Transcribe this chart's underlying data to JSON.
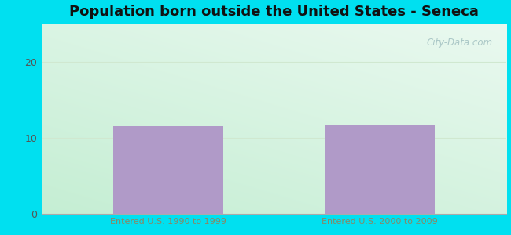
{
  "title": "Population born outside the United States - Seneca",
  "categories": [
    "Entered U.S. 1990 to 1999",
    "Entered U.S. 2000 to 2009"
  ],
  "values": [
    11.5,
    11.8
  ],
  "bar_color": "#b09ac8",
  "background_outer": "#00e0f0",
  "ylim": [
    0,
    25
  ],
  "yticks": [
    0,
    10,
    20
  ],
  "grid_color": "#d0e8d0",
  "title_fontsize": 13,
  "watermark": "City-Data.com",
  "bg_top_right": "#e8f5f0",
  "bg_bottom_left": "#c8ecd8"
}
